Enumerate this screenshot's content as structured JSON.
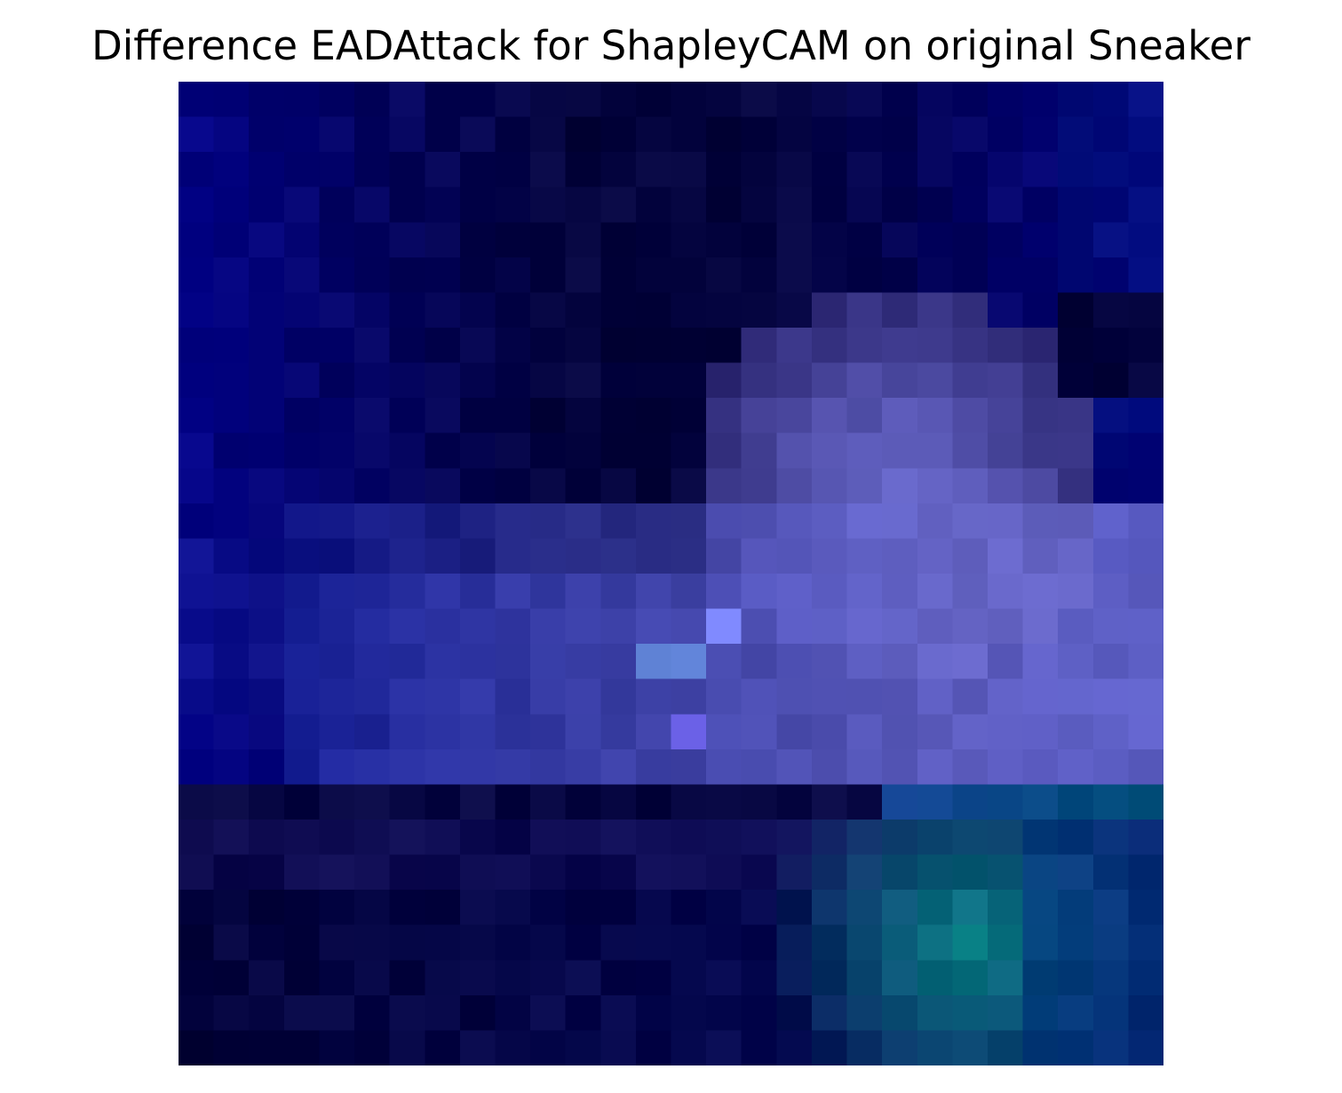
{
  "title": "Difference EADAttack for ShapleyCAM on original Sneaker",
  "image": {
    "description": "Heatmap-overlaid pixelated image of a sneaker",
    "rows": 28,
    "cols": 28,
    "palette": {
      "navy_dark": "#05054a",
      "navy": "#000080",
      "blue": "#2a2aa8",
      "periwinkle": "#7070d8",
      "teal": "#0d8a8a"
    }
  }
}
